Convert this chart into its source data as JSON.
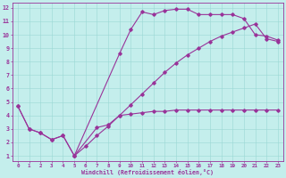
{
  "xlabel": "Windchill (Refroidissement éolien,°C)",
  "bg_color": "#c4eeec",
  "line_color": "#993399",
  "grid_color": "#9ad8d4",
  "spine_color": "#993399",
  "xlim_min": -0.5,
  "xlim_max": 23.5,
  "ylim_min": 0.6,
  "ylim_max": 12.4,
  "xticks": [
    0,
    1,
    2,
    3,
    4,
    5,
    6,
    7,
    8,
    9,
    10,
    11,
    12,
    13,
    14,
    15,
    16,
    17,
    18,
    19,
    20,
    21,
    22,
    23
  ],
  "yticks": [
    1,
    2,
    3,
    4,
    5,
    6,
    7,
    8,
    9,
    10,
    11,
    12
  ],
  "line1_x": [
    0,
    1,
    2,
    3,
    4,
    5,
    7,
    8,
    9,
    10,
    11,
    12,
    13,
    14,
    15,
    16,
    17,
    18,
    19,
    20,
    21,
    22,
    23
  ],
  "line1_y": [
    4.7,
    3.0,
    2.7,
    2.2,
    2.5,
    1.0,
    3.1,
    3.3,
    4.0,
    4.1,
    4.2,
    4.3,
    4.3,
    4.4,
    4.4,
    4.4,
    4.4,
    4.4,
    4.4,
    4.4,
    4.4,
    4.4,
    4.4
  ],
  "line2_x": [
    0,
    1,
    2,
    3,
    4,
    5,
    9,
    10,
    11,
    12,
    13,
    14,
    15,
    16,
    17,
    18,
    19,
    20,
    21,
    22,
    23
  ],
  "line2_y": [
    4.7,
    3.0,
    2.7,
    2.2,
    2.5,
    1.0,
    8.6,
    10.4,
    11.7,
    11.5,
    11.8,
    11.9,
    11.9,
    11.5,
    11.5,
    11.5,
    11.5,
    11.2,
    10.0,
    9.9,
    9.6
  ],
  "line3_x": [
    5,
    6,
    7,
    8,
    9,
    10,
    11,
    12,
    13,
    14,
    15,
    16,
    17,
    18,
    19,
    20,
    21,
    22,
    23
  ],
  "line3_y": [
    1.0,
    1.7,
    2.5,
    3.2,
    4.0,
    4.8,
    5.6,
    6.4,
    7.2,
    7.9,
    8.5,
    9.0,
    9.5,
    9.9,
    10.2,
    10.5,
    10.8,
    9.7,
    9.5
  ]
}
